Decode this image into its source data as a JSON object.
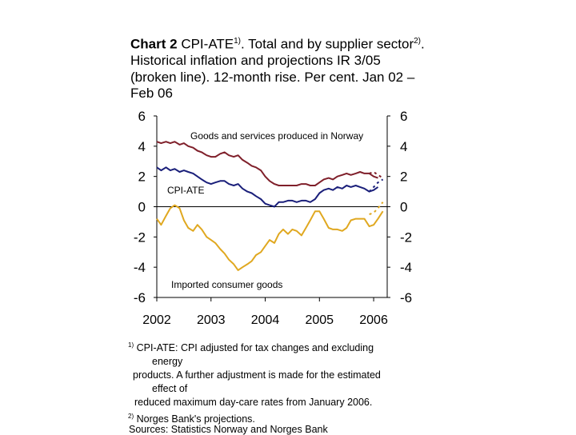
{
  "title": {
    "chart_no": "Chart 2",
    "text1": "CPI-ATE",
    "sup1": "1)",
    "text2": ". Total and by supplier sector",
    "sup2": "2)",
    "text3": ". Historical inflation and projections IR 3/05 (broken line). 12-month rise. Per cent. Jan 02 – Feb 06"
  },
  "footnotes": {
    "n1_mark": "1)",
    "n1_a": "CPI-ATE: CPI adjusted for tax changes and excluding",
    "n1_b": "energy",
    "n1_c": "products. A further adjustment is made for the estimated",
    "n1_d": "effect of",
    "n1_e": "reduced maximum day-care rates from January 2006.",
    "n2_mark": "2)",
    "n2": "Norges Bank's projections.",
    "source": "Sources: Statistics Norway and Norges Bank"
  },
  "chart_data": {
    "type": "line",
    "x_ticks": [
      "2002",
      "2003",
      "2004",
      "2005",
      "2006"
    ],
    "y_ticks": [
      6,
      4,
      2,
      0,
      -2,
      -4,
      -6
    ],
    "y_ticks_right": [
      6,
      4,
      2,
      0,
      -2,
      -4,
      -6
    ],
    "ylim": [
      -6,
      6
    ],
    "xlim": [
      2002.0,
      2006.25
    ],
    "colors": {
      "norway": "#7f1f2a",
      "cpiate": "#1a1f7a",
      "imported": "#e0a820"
    },
    "annotations": {
      "norway": "Goods and services produced in Norway",
      "cpiate": "CPI-ATE",
      "imported": "Imported consumer goods"
    },
    "series": [
      {
        "key": "norway",
        "style": "solid",
        "values": [
          [
            2002.0,
            4.3
          ],
          [
            2002.08,
            4.2
          ],
          [
            2002.17,
            4.3
          ],
          [
            2002.25,
            4.2
          ],
          [
            2002.33,
            4.3
          ],
          [
            2002.42,
            4.1
          ],
          [
            2002.5,
            4.2
          ],
          [
            2002.58,
            4.0
          ],
          [
            2002.67,
            3.9
          ],
          [
            2002.75,
            3.7
          ],
          [
            2002.83,
            3.6
          ],
          [
            2002.92,
            3.4
          ],
          [
            2003.0,
            3.3
          ],
          [
            2003.08,
            3.3
          ],
          [
            2003.17,
            3.5
          ],
          [
            2003.25,
            3.6
          ],
          [
            2003.33,
            3.4
          ],
          [
            2003.42,
            3.3
          ],
          [
            2003.5,
            3.4
          ],
          [
            2003.58,
            3.1
          ],
          [
            2003.67,
            2.9
          ],
          [
            2003.75,
            2.7
          ],
          [
            2003.83,
            2.6
          ],
          [
            2003.92,
            2.4
          ],
          [
            2004.0,
            2.0
          ],
          [
            2004.08,
            1.7
          ],
          [
            2004.17,
            1.5
          ],
          [
            2004.25,
            1.4
          ],
          [
            2004.33,
            1.4
          ],
          [
            2004.42,
            1.4
          ],
          [
            2004.5,
            1.4
          ],
          [
            2004.58,
            1.4
          ],
          [
            2004.67,
            1.5
          ],
          [
            2004.75,
            1.5
          ],
          [
            2004.83,
            1.4
          ],
          [
            2004.92,
            1.4
          ],
          [
            2005.0,
            1.6
          ],
          [
            2005.08,
            1.8
          ],
          [
            2005.17,
            1.9
          ],
          [
            2005.25,
            1.8
          ],
          [
            2005.33,
            2.0
          ],
          [
            2005.42,
            2.1
          ],
          [
            2005.5,
            2.2
          ],
          [
            2005.58,
            2.1
          ],
          [
            2005.67,
            2.2
          ],
          [
            2005.75,
            2.3
          ],
          [
            2005.83,
            2.2
          ],
          [
            2005.92,
            2.2
          ],
          [
            2006.0,
            2.0
          ],
          [
            2006.08,
            1.9
          ]
        ]
      },
      {
        "key": "norway_proj",
        "style": "dashed",
        "values": [
          [
            2005.92,
            2.2
          ],
          [
            2006.0,
            2.3
          ],
          [
            2006.08,
            2.1
          ],
          [
            2006.17,
            1.9
          ]
        ]
      },
      {
        "key": "cpiate",
        "style": "solid",
        "values": [
          [
            2002.0,
            2.6
          ],
          [
            2002.08,
            2.4
          ],
          [
            2002.17,
            2.6
          ],
          [
            2002.25,
            2.4
          ],
          [
            2002.33,
            2.5
          ],
          [
            2002.42,
            2.3
          ],
          [
            2002.5,
            2.4
          ],
          [
            2002.58,
            2.3
          ],
          [
            2002.67,
            2.2
          ],
          [
            2002.75,
            2.0
          ],
          [
            2002.83,
            1.8
          ],
          [
            2002.92,
            1.6
          ],
          [
            2003.0,
            1.5
          ],
          [
            2003.08,
            1.6
          ],
          [
            2003.17,
            1.7
          ],
          [
            2003.25,
            1.7
          ],
          [
            2003.33,
            1.5
          ],
          [
            2003.42,
            1.4
          ],
          [
            2003.5,
            1.5
          ],
          [
            2003.58,
            1.2
          ],
          [
            2003.67,
            1.0
          ],
          [
            2003.75,
            0.9
          ],
          [
            2003.83,
            0.7
          ],
          [
            2003.92,
            0.5
          ],
          [
            2004.0,
            0.2
          ],
          [
            2004.08,
            0.1
          ],
          [
            2004.17,
            0.0
          ],
          [
            2004.25,
            0.3
          ],
          [
            2004.33,
            0.3
          ],
          [
            2004.42,
            0.4
          ],
          [
            2004.5,
            0.4
          ],
          [
            2004.58,
            0.3
          ],
          [
            2004.67,
            0.4
          ],
          [
            2004.75,
            0.4
          ],
          [
            2004.83,
            0.3
          ],
          [
            2004.92,
            0.5
          ],
          [
            2005.0,
            0.9
          ],
          [
            2005.08,
            1.1
          ],
          [
            2005.17,
            1.2
          ],
          [
            2005.25,
            1.1
          ],
          [
            2005.33,
            1.3
          ],
          [
            2005.42,
            1.2
          ],
          [
            2005.5,
            1.4
          ],
          [
            2005.58,
            1.3
          ],
          [
            2005.67,
            1.4
          ],
          [
            2005.75,
            1.3
          ],
          [
            2005.83,
            1.2
          ],
          [
            2005.92,
            1.0
          ],
          [
            2006.0,
            1.1
          ],
          [
            2006.08,
            1.3
          ]
        ]
      },
      {
        "key": "cpiate_proj",
        "style": "dashed",
        "values": [
          [
            2005.92,
            1.0
          ],
          [
            2006.0,
            1.3
          ],
          [
            2006.08,
            1.6
          ],
          [
            2006.17,
            1.8
          ]
        ]
      },
      {
        "key": "imported",
        "style": "solid",
        "values": [
          [
            2002.0,
            -0.8
          ],
          [
            2002.08,
            -1.2
          ],
          [
            2002.17,
            -0.6
          ],
          [
            2002.25,
            -0.1
          ],
          [
            2002.33,
            0.1
          ],
          [
            2002.42,
            -0.1
          ],
          [
            2002.5,
            -0.9
          ],
          [
            2002.58,
            -1.4
          ],
          [
            2002.67,
            -1.6
          ],
          [
            2002.75,
            -1.2
          ],
          [
            2002.83,
            -1.5
          ],
          [
            2002.92,
            -2.0
          ],
          [
            2003.0,
            -2.2
          ],
          [
            2003.08,
            -2.4
          ],
          [
            2003.17,
            -2.8
          ],
          [
            2003.25,
            -3.1
          ],
          [
            2003.33,
            -3.5
          ],
          [
            2003.42,
            -3.8
          ],
          [
            2003.5,
            -4.2
          ],
          [
            2003.58,
            -4.0
          ],
          [
            2003.67,
            -3.8
          ],
          [
            2003.75,
            -3.6
          ],
          [
            2003.83,
            -3.2
          ],
          [
            2003.92,
            -3.0
          ],
          [
            2004.0,
            -2.6
          ],
          [
            2004.08,
            -2.2
          ],
          [
            2004.17,
            -2.4
          ],
          [
            2004.25,
            -1.8
          ],
          [
            2004.33,
            -1.5
          ],
          [
            2004.42,
            -1.8
          ],
          [
            2004.5,
            -1.5
          ],
          [
            2004.58,
            -1.6
          ],
          [
            2004.67,
            -1.9
          ],
          [
            2004.75,
            -1.4
          ],
          [
            2004.83,
            -0.9
          ],
          [
            2004.92,
            -0.3
          ],
          [
            2005.0,
            -0.3
          ],
          [
            2005.08,
            -0.8
          ],
          [
            2005.17,
            -1.4
          ],
          [
            2005.25,
            -1.5
          ],
          [
            2005.33,
            -1.5
          ],
          [
            2005.42,
            -1.6
          ],
          [
            2005.5,
            -1.4
          ],
          [
            2005.58,
            -0.9
          ],
          [
            2005.67,
            -0.8
          ],
          [
            2005.75,
            -0.8
          ],
          [
            2005.83,
            -0.8
          ],
          [
            2005.92,
            -1.3
          ],
          [
            2006.0,
            -1.2
          ],
          [
            2006.08,
            -0.8
          ],
          [
            2006.17,
            -0.3
          ]
        ]
      },
      {
        "key": "imported_proj",
        "style": "dashed",
        "values": [
          [
            2005.92,
            -0.5
          ],
          [
            2006.0,
            -0.4
          ],
          [
            2006.08,
            -0.1
          ],
          [
            2006.17,
            0.3
          ]
        ]
      }
    ]
  }
}
